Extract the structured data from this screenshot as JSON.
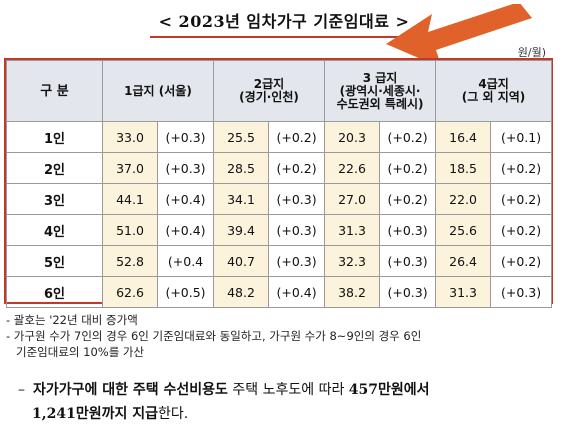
{
  "title": "< 2023년 임차가구 기준임대료 >",
  "unit": "원/월)",
  "table": {
    "header_division": "구 분",
    "columns": [
      {
        "line1": "1급지 (서울)",
        "line2": "",
        "line3": ""
      },
      {
        "line1": "2급지",
        "line2": "(경기·인천)",
        "line3": ""
      },
      {
        "line1": "3 급지",
        "line2": "(광역시·세종시·",
        "line3": "수도권외 특례시)"
      },
      {
        "line1": "4급지",
        "line2": "(그 외 지역)",
        "line3": ""
      }
    ],
    "rows": [
      {
        "label": "1인",
        "cells": [
          [
            "33.0",
            "(+0.3)"
          ],
          [
            "25.5",
            "(+0.2)"
          ],
          [
            "20.3",
            "(+0.2)"
          ],
          [
            "16.4",
            "(+0.1)"
          ]
        ]
      },
      {
        "label": "2인",
        "cells": [
          [
            "37.0",
            "(+0.3)"
          ],
          [
            "28.5",
            "(+0.2)"
          ],
          [
            "22.6",
            "(+0.2)"
          ],
          [
            "18.5",
            "(+0.2)"
          ]
        ]
      },
      {
        "label": "3인",
        "cells": [
          [
            "44.1",
            "(+0.4)"
          ],
          [
            "34.1",
            "(+0.3)"
          ],
          [
            "27.0",
            "(+0.2)"
          ],
          [
            "22.0",
            "(+0.2)"
          ]
        ]
      },
      {
        "label": "4인",
        "cells": [
          [
            "51.0",
            "(+0.4)"
          ],
          [
            "39.4",
            "(+0.3)"
          ],
          [
            "31.3",
            "(+0.3)"
          ],
          [
            "25.6",
            "(+0.2)"
          ]
        ]
      },
      {
        "label": "5인",
        "cells": [
          [
            "52.8",
            "(+0.4"
          ],
          [
            "40.7",
            "(+0.3)"
          ],
          [
            "32.3",
            "(+0.3)"
          ],
          [
            "26.4",
            "(+0.2)"
          ]
        ]
      },
      {
        "label": "6인",
        "cells": [
          [
            "62.6",
            "(+0.5)"
          ],
          [
            "48.2",
            "(+0.4)"
          ],
          [
            "38.2",
            "(+0.3)"
          ],
          [
            "31.3",
            "(+0.3)"
          ]
        ]
      }
    ]
  },
  "notes": [
    "- 괄호는 '22년 대비 증가액",
    "- 가구원 수가 7인의 경우 6인 기준임대료와 동일하고, 가구원 수가 8~9인의 경우 6인",
    "기준임대료의 10%를 가산"
  ],
  "paragraph": {
    "dash": "–",
    "bold1": "자가가구에 대한 주택 수선비용도",
    "plain1": " 주택 노후도에 따라 ",
    "bold2": "457만원에서",
    "bold3": "1,241만원까지 지급",
    "plain2": "한다."
  },
  "colors": {
    "accent_red": "#c0392b",
    "arrow_orange": "#e0622a",
    "header_bg": "#e3e6ec",
    "value_bg": "#fbf3dc"
  },
  "icons": [
    "arrow-left-icon"
  ]
}
